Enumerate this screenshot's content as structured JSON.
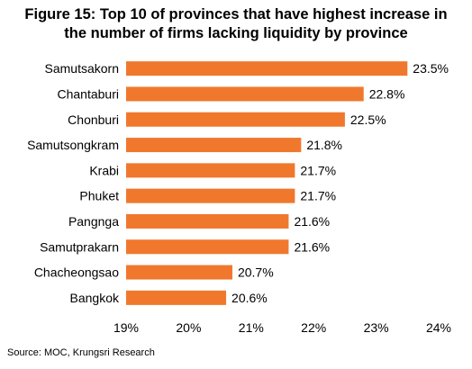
{
  "title_lines": [
    "Figure 15: Top 10 of provinces that have highest increase in",
    "the number of firms lacking liquidity by province"
  ],
  "source": "Source: MOC, Krungsri Research",
  "chart_data": {
    "type": "bar",
    "orientation": "horizontal",
    "title": "Figure 15: Top 10 of provinces that have highest increase in the number of firms lacking liquidity by province",
    "categories": [
      "Samutsakorn",
      "Chantaburi",
      "Chonburi",
      "Samutsongkram",
      "Krabi",
      "Phuket",
      "Pangnga",
      "Samutprakarn",
      "Chacheongsao",
      "Bangkok"
    ],
    "values": [
      23.5,
      22.8,
      22.5,
      21.8,
      21.7,
      21.7,
      21.6,
      21.6,
      20.7,
      20.6
    ],
    "data_labels": [
      "23.5%",
      "22.8%",
      "22.5%",
      "21.8%",
      "21.7%",
      "21.7%",
      "21.6%",
      "21.6%",
      "20.7%",
      "20.6%"
    ],
    "x_ticks": [
      19,
      20,
      21,
      22,
      23,
      24
    ],
    "x_tick_labels": [
      "19%",
      "20%",
      "21%",
      "22%",
      "23%",
      "24%"
    ],
    "xlim": [
      19,
      24
    ],
    "xlabel": "",
    "ylabel": "",
    "grid": false,
    "bar_color": "#F0782D"
  }
}
